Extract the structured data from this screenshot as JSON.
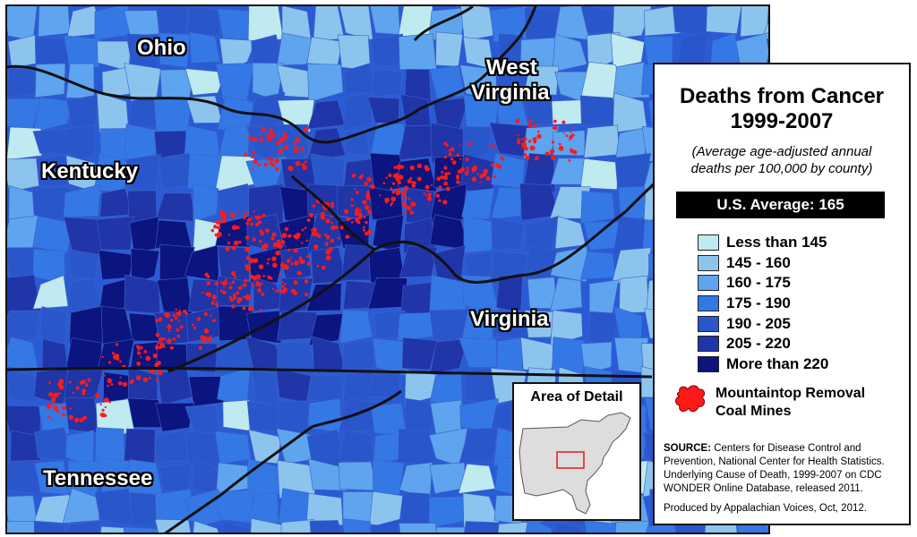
{
  "map": {
    "states": {
      "ohio": "Ohio",
      "west_virginia_1": "West",
      "west_virginia_2": "Virginia",
      "kentucky": "Kentucky",
      "virginia": "Virginia",
      "tennessee": "Tennessee"
    },
    "colors": {
      "water": "#2a5bd6",
      "border": "#111111",
      "mines": "#ff1a1a"
    }
  },
  "legend": {
    "title_line1": "Deaths from Cancer",
    "title_line2": "1999-2007",
    "subtitle_line1": "(Average age-adjusted annual",
    "subtitle_line2": "deaths per 100,000 by county)",
    "us_average": "U.S. Average: 165",
    "bins": [
      {
        "label": "Less than 145",
        "color": "#bfeaf0"
      },
      {
        "label": "145 - 160",
        "color": "#8dc4ee"
      },
      {
        "label": "160 - 175",
        "color": "#5fa4ee"
      },
      {
        "label": "175 - 190",
        "color": "#3478e6"
      },
      {
        "label": "190 - 205",
        "color": "#2a56cc"
      },
      {
        "label": "205 - 220",
        "color": "#1f35a8"
      },
      {
        "label": "More than 220",
        "color": "#0c1480"
      }
    ],
    "mine_label_1": "Mountaintop Removal",
    "mine_label_2": "Coal Mines",
    "source_bold": "SOURCE:",
    "source_text": "Centers for Disease Control and Prevention, National Center for Health Statistics. Underlying Cause of Death, 1999-2007 on CDC WONDER Online Database, released 2011.",
    "credit": "Produced by Appalachian Voices, Oct, 2012."
  },
  "inset": {
    "title": "Area of Detail"
  }
}
